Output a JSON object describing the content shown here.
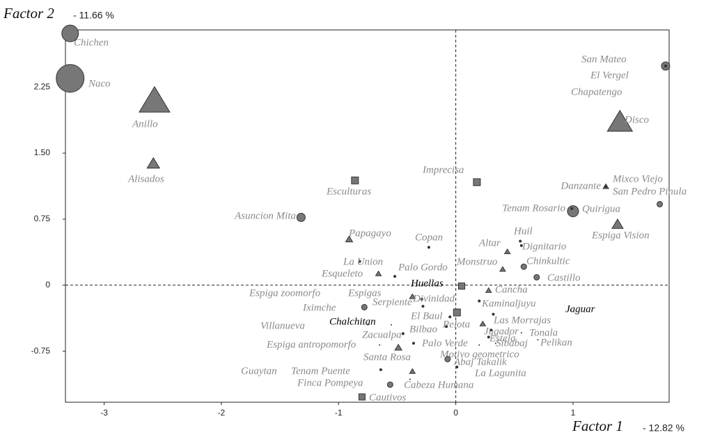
{
  "chart_data": {
    "type": "scatter",
    "ylabel": "Factor 2",
    "ylabel_share": "- 11.66 %",
    "xlabel": "Factor 1",
    "xlabel_share": "- 12.82 %",
    "xlim": [
      -3.33,
      1.82
    ],
    "ylim": [
      -1.33,
      2.9
    ],
    "xticks": [
      -3,
      -2,
      -1,
      0,
      1
    ],
    "yticks": [
      -0.75,
      0,
      0.75,
      {
        "value": 1.5,
        "label": "1.50"
      },
      2.25
    ],
    "zero_lines": true,
    "marker_fill": "#777777",
    "marker_stroke": "#333333",
    "label_color": "#8a8a8a",
    "points": [
      {
        "label": "Chichen",
        "x": -3.29,
        "y": 2.86,
        "marker": "circle",
        "size": 12
      },
      {
        "label": "Naco",
        "x": -3.29,
        "y": 2.35,
        "marker": "circle",
        "size": 20
      },
      {
        "label": "Anillo",
        "x": -2.57,
        "y": 2.09,
        "marker": "triangle",
        "size": 22
      },
      {
        "label": "Alisados",
        "x": -2.58,
        "y": 1.38,
        "marker": "triangle",
        "size": 9
      },
      {
        "label": "Asuncion Mita",
        "x": -1.32,
        "y": 0.77,
        "marker": "circle",
        "size": 6
      },
      {
        "label": "Esculturas",
        "x": -0.86,
        "y": 1.19,
        "marker": "square",
        "size": 10
      },
      {
        "label": "Imprecisa",
        "x": 0.18,
        "y": 1.17,
        "marker": "square",
        "size": 10
      },
      {
        "label": "San Mateo",
        "x": 1.79,
        "y": 2.49,
        "marker": "circle",
        "size": 6
      },
      {
        "label": "El Vergel",
        "x": 1.79,
        "y": 2.49,
        "marker": "dot",
        "size": 2
      },
      {
        "label": "Chapatengo",
        "x": 1.79,
        "y": 2.49,
        "marker": "dot",
        "size": 2
      },
      {
        "label": "Disco",
        "x": 1.4,
        "y": 1.85,
        "marker": "triangle",
        "size": 18
      },
      {
        "label": "Mixco Viejo",
        "x": 1.28,
        "y": 1.12,
        "marker": "triangle",
        "size": 4
      },
      {
        "label": "Danzante",
        "x": 1.28,
        "y": 1.12,
        "marker": "dot",
        "size": 2
      },
      {
        "label": "San Pedro Pinula",
        "x": 1.74,
        "y": 0.92,
        "marker": "circle",
        "size": 4
      },
      {
        "label": "Quirigua",
        "x": 1.0,
        "y": 0.84,
        "marker": "circle",
        "size": 8
      },
      {
        "label": "Tenam Rosario",
        "x": 0.99,
        "y": 0.87,
        "marker": "dot",
        "size": 2
      },
      {
        "label": "Espiga Vision",
        "x": 1.38,
        "y": 0.69,
        "marker": "triangle",
        "size": 8
      },
      {
        "label": "Huil",
        "x": 0.55,
        "y": 0.5,
        "marker": "dot",
        "size": 2
      },
      {
        "label": "Dignitario",
        "x": 0.56,
        "y": 0.45,
        "marker": "dot",
        "size": 2
      },
      {
        "label": "Altar",
        "x": 0.44,
        "y": 0.38,
        "marker": "triangle",
        "size": 4
      },
      {
        "label": "Chinkultic",
        "x": 0.58,
        "y": 0.21,
        "marker": "circle",
        "size": 4
      },
      {
        "label": "Castillo",
        "x": 0.69,
        "y": 0.09,
        "marker": "circle",
        "size": 4
      },
      {
        "label": "Monstruo",
        "x": 0.4,
        "y": 0.18,
        "marker": "triangle",
        "size": 4
      },
      {
        "label": "Copan",
        "x": -0.23,
        "y": 0.43,
        "marker": "dot",
        "size": 2
      },
      {
        "label": "Papagayo",
        "x": -0.91,
        "y": 0.52,
        "marker": "triangle",
        "size": 5
      },
      {
        "label": "La Union",
        "x": -0.82,
        "y": 0.27,
        "marker": "dot",
        "size": 2
      },
      {
        "label": "Palo Gordo",
        "x": -0.52,
        "y": 0.1,
        "marker": "dot",
        "size": 2
      },
      {
        "label": "Esqueleto",
        "x": -0.66,
        "y": 0.13,
        "marker": "triangle",
        "size": 4
      },
      {
        "label": "Huellas",
        "x": 0.05,
        "y": -0.01,
        "marker": "square",
        "size": 9,
        "label_color": "#000000"
      },
      {
        "label": "Cancha",
        "x": 0.28,
        "y": -0.06,
        "marker": "triangle",
        "size": 4
      },
      {
        "label": "Espiga zoomorfo",
        "x": -0.37,
        "y": -0.13,
        "marker": "triangle",
        "size": 4
      },
      {
        "label": "Espigas",
        "x": -0.29,
        "y": -0.16,
        "marker": "dot",
        "size": 2
      },
      {
        "label": "Serpiente",
        "x": -0.28,
        "y": -0.24,
        "marker": "dot",
        "size": 2
      },
      {
        "label": "Divinidad",
        "x": 0.01,
        "y": -0.31,
        "marker": "square",
        "size": 10
      },
      {
        "label": "Kaminaljuyu",
        "x": 0.2,
        "y": -0.18,
        "marker": "dot",
        "size": 2
      },
      {
        "label": "Jaguar",
        "x": 0.98,
        "y": -0.28,
        "marker": "dot",
        "size": 1,
        "label_color": "#000000"
      },
      {
        "label": "Iximche",
        "x": -0.78,
        "y": -0.25,
        "marker": "circle",
        "size": 4
      },
      {
        "label": "El Baul",
        "x": -0.05,
        "y": -0.36,
        "marker": "dot",
        "size": 2
      },
      {
        "label": "Las Morrajas",
        "x": 0.32,
        "y": -0.33,
        "marker": "dot",
        "size": 2
      },
      {
        "label": "Pelota",
        "x": 0.23,
        "y": -0.44,
        "marker": "triangle",
        "size": 4
      },
      {
        "label": "Chalchitan",
        "x": -0.55,
        "y": -0.45,
        "marker": "dot",
        "size": 1,
        "label_color": "#000000"
      },
      {
        "label": "Villanueva",
        "x": -0.75,
        "y": -0.45,
        "marker": "dot",
        "size": 1
      },
      {
        "label": "Bilbao",
        "x": -0.08,
        "y": -0.47,
        "marker": "dot",
        "size": 2
      },
      {
        "label": "Jugador",
        "x": 0.3,
        "y": -0.51,
        "marker": "dot",
        "size": 2
      },
      {
        "label": "Tonala",
        "x": 0.56,
        "y": -0.54,
        "marker": "dot",
        "size": 1
      },
      {
        "label": "Zacualpa",
        "x": -0.45,
        "y": -0.55,
        "marker": "dot",
        "size": 2
      },
      {
        "label": "Estela",
        "x": 0.28,
        "y": -0.59,
        "marker": "dot",
        "size": 2
      },
      {
        "label": "Palo Verde",
        "x": -0.36,
        "y": -0.66,
        "marker": "dot",
        "size": 2
      },
      {
        "label": "Sibabaj",
        "x": 0.34,
        "y": -0.66,
        "marker": "dot",
        "size": 1
      },
      {
        "label": "Pelikan",
        "x": 0.7,
        "y": -0.62,
        "marker": "dot",
        "size": 1
      },
      {
        "label": "Espiga antropomorfo",
        "x": -0.65,
        "y": -0.68,
        "marker": "dot",
        "size": 1
      },
      {
        "label": "Santa Rosa",
        "x": -0.49,
        "y": -0.71,
        "marker": "triangle",
        "size": 5
      },
      {
        "label": "Motivo geometrico",
        "x": 0.2,
        "y": -0.68,
        "marker": "dot",
        "size": 1
      },
      {
        "label": "Abaj Takalik",
        "x": -0.07,
        "y": -0.84,
        "marker": "circle",
        "size": 4
      },
      {
        "label": "La Lagunita",
        "x": 0.01,
        "y": -0.93,
        "marker": "dot",
        "size": 2
      },
      {
        "label": "Guaytan",
        "x": -0.64,
        "y": -0.96,
        "marker": "dot",
        "size": 2
      },
      {
        "label": "Tenam Puente",
        "x": -0.37,
        "y": -0.98,
        "marker": "triangle",
        "size": 4
      },
      {
        "label": "Finca Pompeya",
        "x": -0.56,
        "y": -1.13,
        "marker": "circle",
        "size": 4
      },
      {
        "label": "Cabeza Humana",
        "x": -0.39,
        "y": -1.07,
        "marker": "dot",
        "size": 1
      },
      {
        "label": "Cautivos",
        "x": -0.8,
        "y": -1.27,
        "marker": "square",
        "size": 9
      }
    ]
  }
}
